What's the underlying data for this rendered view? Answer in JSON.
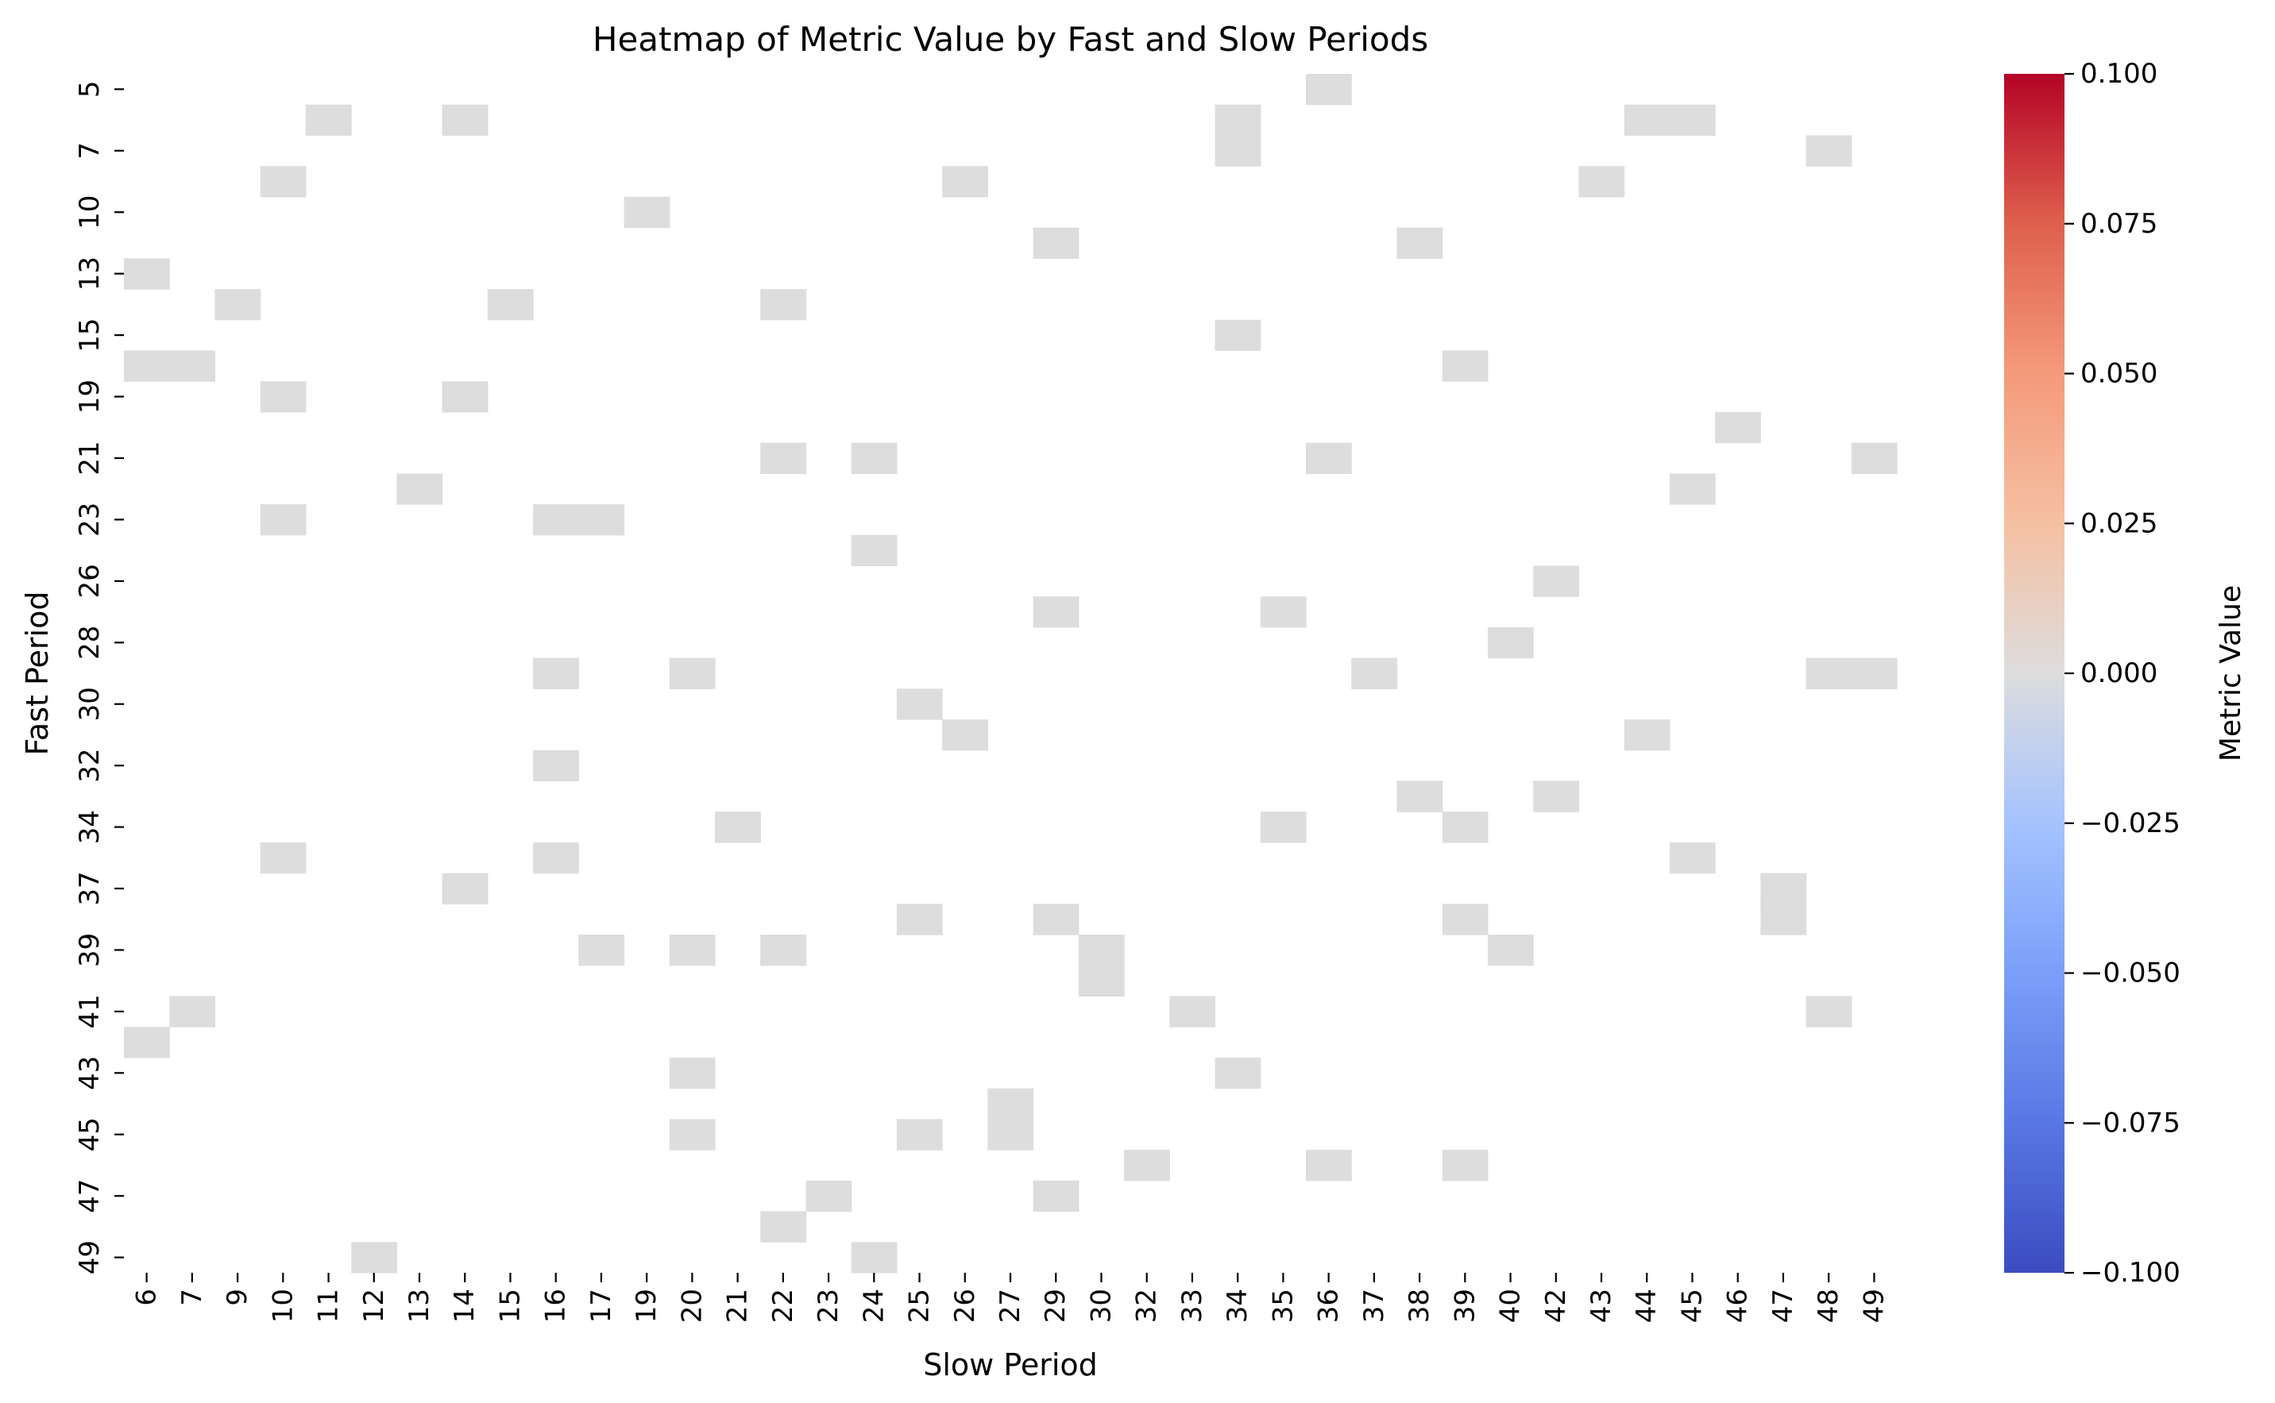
{
  "chart_data": {
    "type": "heatmap",
    "title": "Heatmap of Metric Value by Fast and Slow Periods",
    "xlabel": "Slow Period",
    "ylabel": "Fast Period",
    "colorbar_label": "Metric Value",
    "colormap": "coolwarm",
    "color_range": [
      -0.1,
      0.1
    ],
    "cell_color_hex": "#dddddd",
    "x_categories": [
      "6",
      "7",
      "9",
      "10",
      "11",
      "12",
      "13",
      "14",
      "15",
      "16",
      "17",
      "19",
      "20",
      "21",
      "22",
      "23",
      "24",
      "25",
      "26",
      "27",
      "29",
      "30",
      "32",
      "33",
      "34",
      "35",
      "36",
      "37",
      "38",
      "39",
      "40",
      "42",
      "43",
      "44",
      "45",
      "46",
      "47",
      "48",
      "49"
    ],
    "y_categories": [
      "5",
      "6",
      "7",
      "8",
      "10",
      "12",
      "13",
      "14",
      "15",
      "18",
      "19",
      "20",
      "21",
      "22",
      "23",
      "24",
      "26",
      "27",
      "28",
      "29",
      "30",
      "31",
      "32",
      "33",
      "34",
      "35",
      "37",
      "38",
      "39",
      "40",
      "41",
      "42",
      "43",
      "44",
      "45",
      "46",
      "47",
      "48",
      "49"
    ],
    "y_tick_labels_shown": [
      "5",
      "7",
      "10",
      "13",
      "15",
      "19",
      "21",
      "23",
      "26",
      "28",
      "30",
      "32",
      "34",
      "37",
      "39",
      "41",
      "43",
      "45",
      "47",
      "49"
    ],
    "colorbar_ticks": [
      "0.100",
      "0.075",
      "0.050",
      "0.025",
      "0.000",
      "−0.025",
      "−0.050",
      "−0.075",
      "−0.100"
    ],
    "value_note": "All plotted cells have value 0.000; remaining combinations have no data.",
    "cells": [
      {
        "slow": "36",
        "fast": "5",
        "value": 0
      },
      {
        "slow": "11",
        "fast": "6",
        "value": 0
      },
      {
        "slow": "14",
        "fast": "6",
        "value": 0
      },
      {
        "slow": "34",
        "fast": "6",
        "value": 0
      },
      {
        "slow": "44",
        "fast": "6",
        "value": 0
      },
      {
        "slow": "45",
        "fast": "6",
        "value": 0
      },
      {
        "slow": "34",
        "fast": "7",
        "value": 0
      },
      {
        "slow": "48",
        "fast": "7",
        "value": 0
      },
      {
        "slow": "10",
        "fast": "8",
        "value": 0
      },
      {
        "slow": "26",
        "fast": "8",
        "value": 0
      },
      {
        "slow": "43",
        "fast": "8",
        "value": 0
      },
      {
        "slow": "19",
        "fast": "10",
        "value": 0
      },
      {
        "slow": "29",
        "fast": "12",
        "value": 0
      },
      {
        "slow": "38",
        "fast": "12",
        "value": 0
      },
      {
        "slow": "6",
        "fast": "13",
        "value": 0
      },
      {
        "slow": "9",
        "fast": "14",
        "value": 0
      },
      {
        "slow": "15",
        "fast": "14",
        "value": 0
      },
      {
        "slow": "22",
        "fast": "14",
        "value": 0
      },
      {
        "slow": "34",
        "fast": "15",
        "value": 0
      },
      {
        "slow": "6",
        "fast": "18",
        "value": 0
      },
      {
        "slow": "7",
        "fast": "18",
        "value": 0
      },
      {
        "slow": "39",
        "fast": "18",
        "value": 0
      },
      {
        "slow": "10",
        "fast": "19",
        "value": 0
      },
      {
        "slow": "14",
        "fast": "19",
        "value": 0
      },
      {
        "slow": "46",
        "fast": "20",
        "value": 0
      },
      {
        "slow": "22",
        "fast": "21",
        "value": 0
      },
      {
        "slow": "24",
        "fast": "21",
        "value": 0
      },
      {
        "slow": "36",
        "fast": "21",
        "value": 0
      },
      {
        "slow": "49",
        "fast": "21",
        "value": 0
      },
      {
        "slow": "13",
        "fast": "22",
        "value": 0
      },
      {
        "slow": "45",
        "fast": "22",
        "value": 0
      },
      {
        "slow": "10",
        "fast": "23",
        "value": 0
      },
      {
        "slow": "16",
        "fast": "23",
        "value": 0
      },
      {
        "slow": "17",
        "fast": "23",
        "value": 0
      },
      {
        "slow": "24",
        "fast": "24",
        "value": 0
      },
      {
        "slow": "42",
        "fast": "26",
        "value": 0
      },
      {
        "slow": "29",
        "fast": "27",
        "value": 0
      },
      {
        "slow": "35",
        "fast": "27",
        "value": 0
      },
      {
        "slow": "40",
        "fast": "28",
        "value": 0
      },
      {
        "slow": "16",
        "fast": "29",
        "value": 0
      },
      {
        "slow": "20",
        "fast": "29",
        "value": 0
      },
      {
        "slow": "37",
        "fast": "29",
        "value": 0
      },
      {
        "slow": "48",
        "fast": "29",
        "value": 0
      },
      {
        "slow": "49",
        "fast": "29",
        "value": 0
      },
      {
        "slow": "25",
        "fast": "30",
        "value": 0
      },
      {
        "slow": "26",
        "fast": "31",
        "value": 0
      },
      {
        "slow": "44",
        "fast": "31",
        "value": 0
      },
      {
        "slow": "16",
        "fast": "32",
        "value": 0
      },
      {
        "slow": "38",
        "fast": "33",
        "value": 0
      },
      {
        "slow": "42",
        "fast": "33",
        "value": 0
      },
      {
        "slow": "21",
        "fast": "34",
        "value": 0
      },
      {
        "slow": "35",
        "fast": "34",
        "value": 0
      },
      {
        "slow": "39",
        "fast": "34",
        "value": 0
      },
      {
        "slow": "10",
        "fast": "35",
        "value": 0
      },
      {
        "slow": "16",
        "fast": "35",
        "value": 0
      },
      {
        "slow": "45",
        "fast": "35",
        "value": 0
      },
      {
        "slow": "14",
        "fast": "37",
        "value": 0
      },
      {
        "slow": "47",
        "fast": "37",
        "value": 0
      },
      {
        "slow": "25",
        "fast": "38",
        "value": 0
      },
      {
        "slow": "29",
        "fast": "38",
        "value": 0
      },
      {
        "slow": "39",
        "fast": "38",
        "value": 0
      },
      {
        "slow": "47",
        "fast": "38",
        "value": 0
      },
      {
        "slow": "17",
        "fast": "39",
        "value": 0
      },
      {
        "slow": "20",
        "fast": "39",
        "value": 0
      },
      {
        "slow": "22",
        "fast": "39",
        "value": 0
      },
      {
        "slow": "30",
        "fast": "39",
        "value": 0
      },
      {
        "slow": "40",
        "fast": "39",
        "value": 0
      },
      {
        "slow": "30",
        "fast": "40",
        "value": 0
      },
      {
        "slow": "7",
        "fast": "41",
        "value": 0
      },
      {
        "slow": "33",
        "fast": "41",
        "value": 0
      },
      {
        "slow": "48",
        "fast": "41",
        "value": 0
      },
      {
        "slow": "6",
        "fast": "42",
        "value": 0
      },
      {
        "slow": "20",
        "fast": "43",
        "value": 0
      },
      {
        "slow": "34",
        "fast": "43",
        "value": 0
      },
      {
        "slow": "27",
        "fast": "44",
        "value": 0
      },
      {
        "slow": "20",
        "fast": "45",
        "value": 0
      },
      {
        "slow": "25",
        "fast": "45",
        "value": 0
      },
      {
        "slow": "27",
        "fast": "45",
        "value": 0
      },
      {
        "slow": "32",
        "fast": "46",
        "value": 0
      },
      {
        "slow": "36",
        "fast": "46",
        "value": 0
      },
      {
        "slow": "39",
        "fast": "46",
        "value": 0
      },
      {
        "slow": "23",
        "fast": "47",
        "value": 0
      },
      {
        "slow": "29",
        "fast": "47",
        "value": 0
      },
      {
        "slow": "22",
        "fast": "48",
        "value": 0
      },
      {
        "slow": "12",
        "fast": "49",
        "value": 0
      },
      {
        "slow": "24",
        "fast": "49",
        "value": 0
      }
    ]
  }
}
